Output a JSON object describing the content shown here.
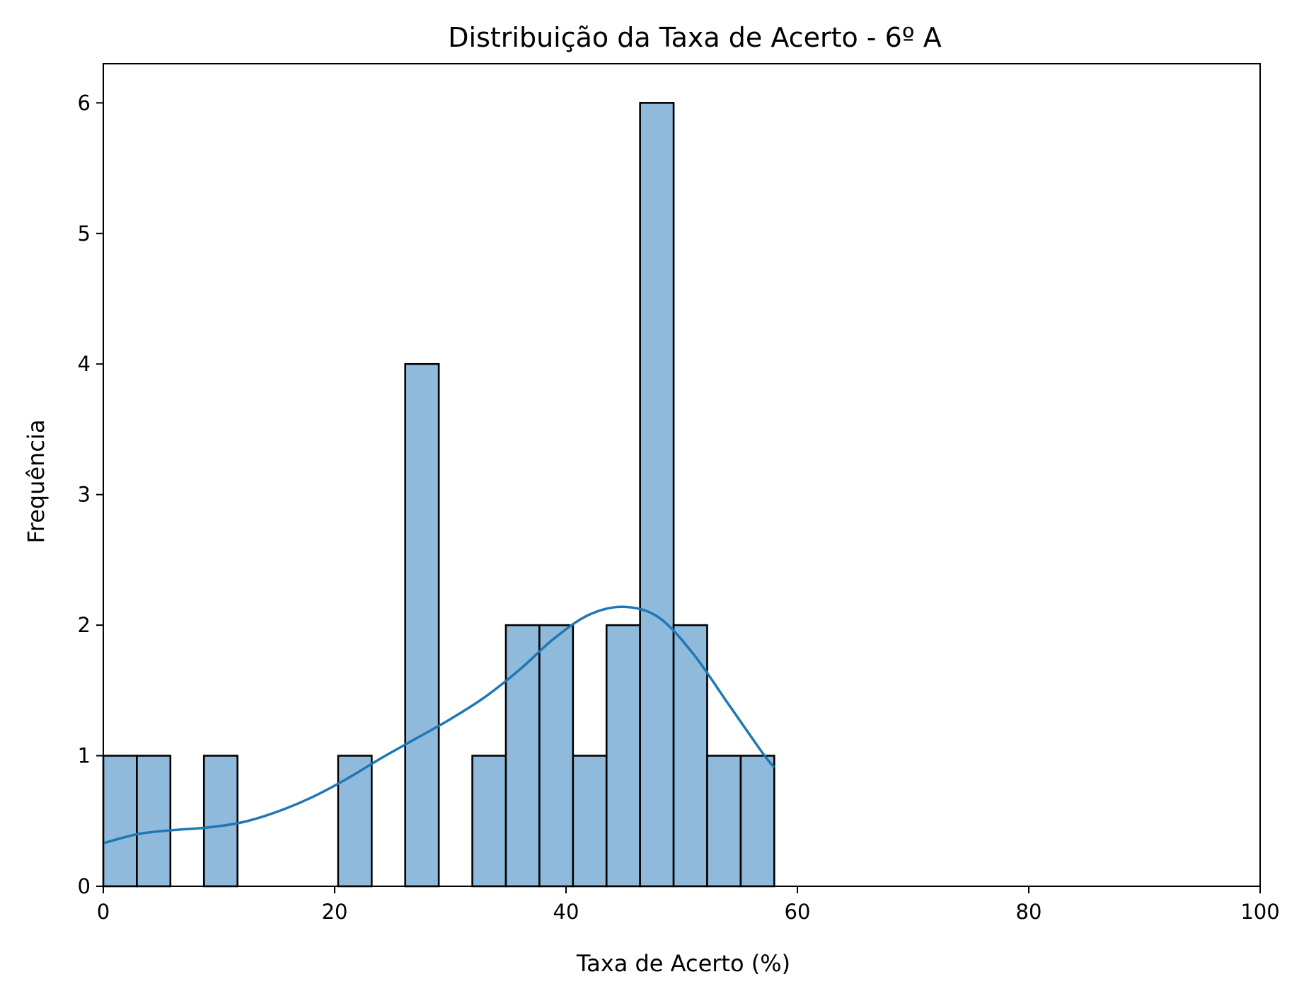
{
  "chart_data": {
    "type": "bar",
    "subtype": "histogram-with-kde",
    "title": "Distribuição da Taxa de Acerto - 6º A",
    "xlabel": "Taxa de Acerto (%)",
    "ylabel": "Frequência",
    "xlim": [
      0,
      100
    ],
    "ylim": [
      0,
      6.3
    ],
    "xticks": [
      0,
      20,
      40,
      60,
      80,
      100
    ],
    "yticks": [
      0,
      1,
      2,
      3,
      4,
      5,
      6
    ],
    "grid": false,
    "legend": "none",
    "bin_width": 2.9,
    "bins": [
      {
        "x0": 0.0,
        "count": 1
      },
      {
        "x0": 2.9,
        "count": 1
      },
      {
        "x0": 5.8,
        "count": 0
      },
      {
        "x0": 8.7,
        "count": 1
      },
      {
        "x0": 11.6,
        "count": 0
      },
      {
        "x0": 14.5,
        "count": 0
      },
      {
        "x0": 17.4,
        "count": 0
      },
      {
        "x0": 20.3,
        "count": 1
      },
      {
        "x0": 23.2,
        "count": 0
      },
      {
        "x0": 26.1,
        "count": 4
      },
      {
        "x0": 29.0,
        "count": 0
      },
      {
        "x0": 31.9,
        "count": 1
      },
      {
        "x0": 34.8,
        "count": 2
      },
      {
        "x0": 37.7,
        "count": 2
      },
      {
        "x0": 40.6,
        "count": 1
      },
      {
        "x0": 43.5,
        "count": 2
      },
      {
        "x0": 46.4,
        "count": 6
      },
      {
        "x0": 49.3,
        "count": 2
      },
      {
        "x0": 52.2,
        "count": 1
      },
      {
        "x0": 55.1,
        "count": 1
      }
    ],
    "kde": {
      "x": [
        0,
        3,
        6,
        9,
        12,
        15,
        18,
        21,
        24,
        27,
        30,
        33,
        36,
        39,
        42,
        45,
        48,
        51,
        54,
        57,
        58
      ],
      "y": [
        0.33,
        0.4,
        0.43,
        0.45,
        0.49,
        0.57,
        0.68,
        0.82,
        0.98,
        1.13,
        1.28,
        1.45,
        1.66,
        1.9,
        2.08,
        2.14,
        2.06,
        1.78,
        1.4,
        1.02,
        0.91
      ]
    },
    "colors": {
      "bar_fill": "#8fbadb",
      "bar_edge": "#000000",
      "kde_line": "#1f77b4"
    }
  }
}
